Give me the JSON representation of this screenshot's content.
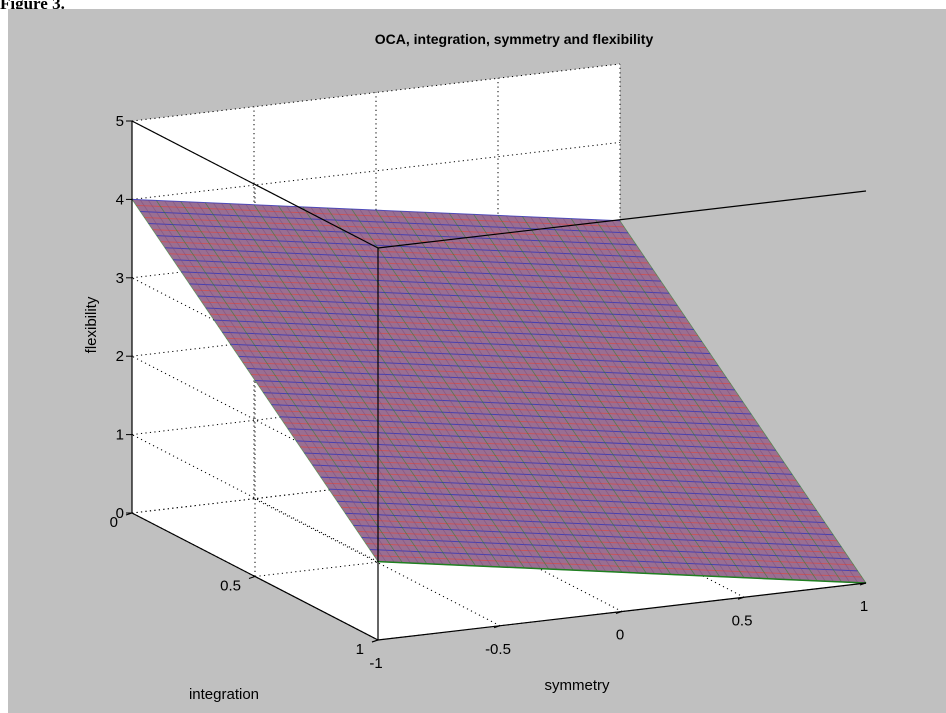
{
  "caption": "Figure 3.",
  "colors": {
    "panel": "#c0c0c0",
    "axes_background": "#ffffff",
    "surface_red": "#d05050",
    "surface_blue": "#3838b8",
    "surface_green": "#208020"
  },
  "chart_data": {
    "type": "surface",
    "title": "OCA, integration, symmetry and flexibility",
    "xlabel": "symmetry",
    "ylabel": "integration",
    "zlabel": "flexibility",
    "x_ticks": [
      "-1",
      "-0.5",
      "0",
      "0.5",
      "1"
    ],
    "y_ticks": [
      "0",
      "0.5",
      "1"
    ],
    "z_ticks": [
      "0",
      "1",
      "2",
      "3",
      "4",
      "5"
    ],
    "xlim": [
      -1,
      1
    ],
    "ylim": [
      0,
      1
    ],
    "zlim": [
      0,
      5
    ],
    "grid": true,
    "surface": {
      "x": [
        -1,
        1
      ],
      "y": [
        0,
        1
      ],
      "z": [
        [
          4.0,
          3.0
        ],
        [
          1.0,
          0.0
        ]
      ],
      "z_note_rows_are_y_cols_are_x": true
    }
  }
}
